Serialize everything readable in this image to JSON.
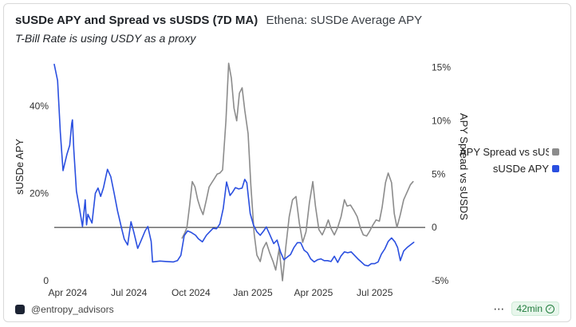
{
  "header": {
    "title": "sUSDe APY and Spread vs sUSDS (7D MA)",
    "query_name": "Ethena: sUSDe Average APY",
    "subtitle": "T-Bill Rate is using USDY as a proxy"
  },
  "footer": {
    "author": "@entropy_advisors",
    "more_icon": "⋯",
    "refresh": "42min"
  },
  "colors": {
    "spread": "#8c8c8c",
    "apy": "#2a4fe0",
    "zero_line": "#222222"
  },
  "chart_data": {
    "type": "line",
    "x_type": "date",
    "x_ticks": [
      {
        "date": "2024-04-01",
        "label": "Apr 2024"
      },
      {
        "date": "2024-07-01",
        "label": "Jul 2024"
      },
      {
        "date": "2024-10-01",
        "label": "Oct 2024"
      },
      {
        "date": "2025-01-01",
        "label": "Jan 2025"
      },
      {
        "date": "2025-04-01",
        "label": "Apr 2025"
      },
      {
        "date": "2025-07-01",
        "label": "Jul 2025"
      }
    ],
    "xlim": [
      "2024-03-12",
      "2025-09-14"
    ],
    "y_left": {
      "label": "sUSDe APY",
      "ylim": [
        0,
        50
      ],
      "ticks": [
        0,
        20,
        40
      ],
      "tick_labels": [
        "0",
        "20%",
        "40%"
      ]
    },
    "y_right": {
      "label": "APY Spread vs sUSDS",
      "ylim": [
        -5,
        15.5
      ],
      "ticks": [
        -5,
        0,
        5,
        10,
        15
      ],
      "tick_labels": [
        "-5%",
        "0",
        "5%",
        "10%",
        "15%"
      ]
    },
    "grid": false,
    "legend_position": "right",
    "series": [
      {
        "name": "APY Spread vs sUSDS",
        "axis": "right",
        "color": "#8c8c8c",
        "points": [
          [
            "2024-09-18",
            -1.0
          ],
          [
            "2024-09-22",
            -0.5
          ],
          [
            "2024-09-25",
            0.0
          ],
          [
            "2024-09-29",
            2.0
          ],
          [
            "2024-10-03",
            4.3
          ],
          [
            "2024-10-07",
            3.8
          ],
          [
            "2024-10-11",
            2.6
          ],
          [
            "2024-10-15",
            1.8
          ],
          [
            "2024-10-19",
            1.2
          ],
          [
            "2024-10-24",
            2.6
          ],
          [
            "2024-10-28",
            3.8
          ],
          [
            "2024-11-01",
            4.2
          ],
          [
            "2024-11-05",
            4.6
          ],
          [
            "2024-11-09",
            5.0
          ],
          [
            "2024-11-13",
            5.1
          ],
          [
            "2024-11-17",
            5.4
          ],
          [
            "2024-11-22",
            10.0
          ],
          [
            "2024-11-26",
            15.4
          ],
          [
            "2024-11-30",
            14.0
          ],
          [
            "2024-12-04",
            11.2
          ],
          [
            "2024-12-08",
            10.0
          ],
          [
            "2024-12-12",
            12.6
          ],
          [
            "2024-12-16",
            13.1
          ],
          [
            "2024-12-20",
            11.0
          ],
          [
            "2024-12-25",
            8.8
          ],
          [
            "2024-12-29",
            4.0
          ],
          [
            "2025-01-03",
            -0.6
          ],
          [
            "2025-01-07",
            -2.6
          ],
          [
            "2025-01-12",
            -3.2
          ],
          [
            "2025-01-16",
            -2.0
          ],
          [
            "2025-01-21",
            -1.4
          ],
          [
            "2025-01-26",
            -2.4
          ],
          [
            "2025-01-31",
            -3.2
          ],
          [
            "2025-02-04",
            -4.0
          ],
          [
            "2025-02-09",
            -2.0
          ],
          [
            "2025-02-14",
            -5.0
          ],
          [
            "2025-02-19",
            -1.8
          ],
          [
            "2025-02-24",
            1.0
          ],
          [
            "2025-03-01",
            2.6
          ],
          [
            "2025-03-06",
            2.9
          ],
          [
            "2025-03-11",
            0.4
          ],
          [
            "2025-03-16",
            -1.4
          ],
          [
            "2025-03-21",
            -0.4
          ],
          [
            "2025-03-26",
            2.3
          ],
          [
            "2025-03-31",
            4.3
          ],
          [
            "2025-04-04",
            2.0
          ],
          [
            "2025-04-09",
            -0.2
          ],
          [
            "2025-04-14",
            -0.7
          ],
          [
            "2025-04-19",
            0.0
          ],
          [
            "2025-04-23",
            0.7
          ],
          [
            "2025-04-27",
            -0.1
          ],
          [
            "2025-05-02",
            -0.7
          ],
          [
            "2025-05-07",
            0.0
          ],
          [
            "2025-05-12",
            1.0
          ],
          [
            "2025-05-17",
            2.6
          ],
          [
            "2025-05-21",
            2.0
          ],
          [
            "2025-05-26",
            2.1
          ],
          [
            "2025-05-31",
            1.6
          ],
          [
            "2025-06-05",
            1.0
          ],
          [
            "2025-06-10",
            -0.1
          ],
          [
            "2025-06-14",
            -0.7
          ],
          [
            "2025-06-19",
            -0.8
          ],
          [
            "2025-06-23",
            -0.4
          ],
          [
            "2025-06-28",
            0.2
          ],
          [
            "2025-07-03",
            0.7
          ],
          [
            "2025-07-08",
            0.6
          ],
          [
            "2025-07-12",
            1.9
          ],
          [
            "2025-07-17",
            4.2
          ],
          [
            "2025-07-21",
            5.1
          ],
          [
            "2025-07-26",
            4.2
          ],
          [
            "2025-07-30",
            1.3
          ],
          [
            "2025-08-03",
            0.0
          ],
          [
            "2025-08-08",
            1.2
          ],
          [
            "2025-08-13",
            2.6
          ],
          [
            "2025-08-18",
            3.3
          ],
          [
            "2025-08-23",
            4.0
          ],
          [
            "2025-08-27",
            4.3
          ]
        ]
      },
      {
        "name": "sUSDe APY",
        "axis": "left",
        "color": "#2a4fe0",
        "points": [
          [
            "2024-03-12",
            49.5
          ],
          [
            "2024-03-17",
            45.8
          ],
          [
            "2024-03-21",
            34.0
          ],
          [
            "2024-03-25",
            25.2
          ],
          [
            "2024-03-31",
            29.0
          ],
          [
            "2024-04-04",
            31.0
          ],
          [
            "2024-04-07",
            36.0
          ],
          [
            "2024-04-08",
            36.8
          ],
          [
            "2024-04-10",
            30.0
          ],
          [
            "2024-04-14",
            20.5
          ],
          [
            "2024-04-18",
            17.0
          ],
          [
            "2024-04-23",
            12.4
          ],
          [
            "2024-04-27",
            18.5
          ],
          [
            "2024-04-29",
            12.8
          ],
          [
            "2024-05-01",
            15.2
          ],
          [
            "2024-05-07",
            13.2
          ],
          [
            "2024-05-12",
            20.0
          ],
          [
            "2024-05-16",
            21.2
          ],
          [
            "2024-05-20",
            19.3
          ],
          [
            "2024-05-24",
            21.2
          ],
          [
            "2024-05-30",
            25.5
          ],
          [
            "2024-06-04",
            23.8
          ],
          [
            "2024-06-09",
            20.0
          ],
          [
            "2024-06-14",
            16.0
          ],
          [
            "2024-06-20",
            12.0
          ],
          [
            "2024-06-24",
            9.5
          ],
          [
            "2024-06-29",
            8.2
          ],
          [
            "2024-07-04",
            13.5
          ],
          [
            "2024-07-08",
            11.2
          ],
          [
            "2024-07-14",
            7.4
          ],
          [
            "2024-07-19",
            9.2
          ],
          [
            "2024-07-25",
            11.4
          ],
          [
            "2024-07-29",
            12.4
          ],
          [
            "2024-08-03",
            9.0
          ],
          [
            "2024-08-05",
            4.3
          ],
          [
            "2024-08-16",
            4.5
          ],
          [
            "2024-08-26",
            4.4
          ],
          [
            "2024-09-05",
            4.3
          ],
          [
            "2024-09-11",
            4.6
          ],
          [
            "2024-09-16",
            5.8
          ],
          [
            "2024-09-21",
            10.3
          ],
          [
            "2024-09-26",
            11.4
          ],
          [
            "2024-10-01",
            11.1
          ],
          [
            "2024-10-08",
            10.4
          ],
          [
            "2024-10-12",
            9.6
          ],
          [
            "2024-10-18",
            8.9
          ],
          [
            "2024-10-24",
            10.4
          ],
          [
            "2024-10-29",
            11.2
          ],
          [
            "2024-11-03",
            12.0
          ],
          [
            "2024-11-08",
            11.9
          ],
          [
            "2024-11-13",
            13.0
          ],
          [
            "2024-11-18",
            16.5
          ],
          [
            "2024-11-23",
            22.6
          ],
          [
            "2024-11-28",
            19.5
          ],
          [
            "2024-12-02",
            20.3
          ],
          [
            "2024-12-06",
            21.3
          ],
          [
            "2024-12-11",
            21.0
          ],
          [
            "2024-12-16",
            21.2
          ],
          [
            "2024-12-20",
            23.2
          ],
          [
            "2024-12-23",
            22.4
          ],
          [
            "2024-12-28",
            15.4
          ],
          [
            "2025-01-02",
            12.7
          ],
          [
            "2025-01-07",
            11.2
          ],
          [
            "2025-01-12",
            10.4
          ],
          [
            "2025-01-17",
            11.4
          ],
          [
            "2025-01-21",
            12.3
          ],
          [
            "2025-01-26",
            10.6
          ],
          [
            "2025-02-01",
            8.5
          ],
          [
            "2025-02-06",
            9.3
          ],
          [
            "2025-02-11",
            6.6
          ],
          [
            "2025-02-16",
            4.8
          ],
          [
            "2025-02-21",
            5.4
          ],
          [
            "2025-02-26",
            6.0
          ],
          [
            "2025-03-03",
            7.6
          ],
          [
            "2025-03-08",
            8.7
          ],
          [
            "2025-03-13",
            8.7
          ],
          [
            "2025-03-18",
            7.0
          ],
          [
            "2025-03-23",
            6.4
          ],
          [
            "2025-03-28",
            5.0
          ],
          [
            "2025-04-02",
            4.3
          ],
          [
            "2025-04-07",
            4.8
          ],
          [
            "2025-04-12",
            5.0
          ],
          [
            "2025-04-17",
            4.6
          ],
          [
            "2025-04-22",
            4.6
          ],
          [
            "2025-04-27",
            4.4
          ],
          [
            "2025-05-02",
            5.6
          ],
          [
            "2025-05-07",
            4.2
          ],
          [
            "2025-05-12",
            5.7
          ],
          [
            "2025-05-17",
            6.6
          ],
          [
            "2025-05-22",
            6.4
          ],
          [
            "2025-05-27",
            6.6
          ],
          [
            "2025-06-01",
            5.8
          ],
          [
            "2025-06-06",
            5.0
          ],
          [
            "2025-06-11",
            4.3
          ],
          [
            "2025-06-16",
            3.6
          ],
          [
            "2025-06-21",
            3.4
          ],
          [
            "2025-06-26",
            3.9
          ],
          [
            "2025-07-01",
            3.9
          ],
          [
            "2025-07-06",
            4.3
          ],
          [
            "2025-07-11",
            6.1
          ],
          [
            "2025-07-16",
            7.3
          ],
          [
            "2025-07-21",
            9.0
          ],
          [
            "2025-07-26",
            9.8
          ],
          [
            "2025-07-31",
            8.9
          ],
          [
            "2025-08-04",
            7.6
          ],
          [
            "2025-08-08",
            4.6
          ],
          [
            "2025-08-13",
            6.8
          ],
          [
            "2025-08-18",
            7.6
          ],
          [
            "2025-08-23",
            8.2
          ],
          [
            "2025-08-28",
            8.8
          ]
        ]
      }
    ]
  }
}
